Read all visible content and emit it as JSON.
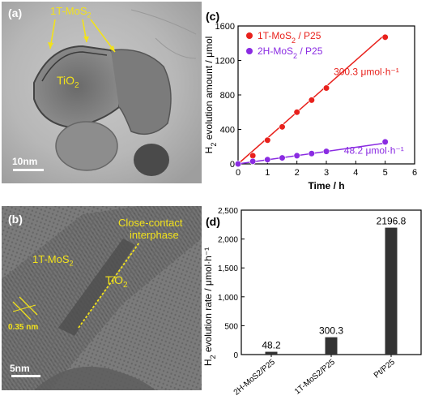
{
  "panels": {
    "a": {
      "label": "(a)",
      "annotations": {
        "mos2": "1T-MoS",
        "mos2_sub": "2",
        "tio2": "TiO",
        "tio2_sub": "2"
      },
      "scale": "10nm"
    },
    "b": {
      "label": "(b)",
      "annotations": {
        "interphase_line1": "Close-contact",
        "interphase_line2": "interphase",
        "mos2": "1T-MoS",
        "mos2_sub": "2",
        "tio2": "TiO",
        "tio2_sub": "2",
        "spacing": "0.35 nm"
      },
      "scale": "5nm"
    },
    "c": {
      "label": "(c)"
    },
    "d": {
      "label": "(d)"
    }
  },
  "chart_data": [
    {
      "type": "scatter",
      "panel": "c",
      "xlabel": "Time / h",
      "ylabel": "H2 evolution amount / μmol",
      "xlim": [
        0,
        6
      ],
      "ylim": [
        0,
        1600
      ],
      "xticks": [
        0,
        1,
        2,
        3,
        4,
        5,
        6
      ],
      "yticks": [
        0,
        400,
        800,
        1200,
        1600
      ],
      "legend": "top-left",
      "series": [
        {
          "name": "1T-MoS2 / P25",
          "color": "#e8211c",
          "x": [
            0,
            0.5,
            1,
            1.5,
            2,
            2.5,
            3,
            5
          ],
          "y": [
            0,
            95,
            275,
            430,
            600,
            740,
            880,
            1470
          ],
          "fit_label": "300.3 μmol·h⁻¹",
          "slope": 300.3
        },
        {
          "name": "2H-MoS2 / P25",
          "color": "#8a2be2",
          "x": [
            0,
            0.5,
            1,
            1.5,
            2,
            2.5,
            3,
            5
          ],
          "y": [
            0,
            30,
            50,
            70,
            95,
            120,
            145,
            255
          ],
          "fit_label": "48.2 μmol·h⁻¹",
          "slope": 48.2
        }
      ]
    },
    {
      "type": "bar",
      "panel": "d",
      "categories": [
        "2H-MoS2/P25",
        "1T-MoS2/P25",
        "Pt/P25"
      ],
      "values": [
        48.2,
        300.3,
        2196.8
      ],
      "value_labels": [
        "48.2",
        "300.3",
        "2196.8"
      ],
      "ylabel": "H2 evolution rate / μmol·h⁻¹",
      "ylim": [
        0,
        2500
      ],
      "yticks": [
        0,
        500,
        1000,
        1500,
        2000,
        2500
      ],
      "ytick_labels": [
        "0",
        "500",
        "1,000",
        "1,500",
        "2,000",
        "2,500"
      ],
      "bar_color": "#333333"
    }
  ]
}
